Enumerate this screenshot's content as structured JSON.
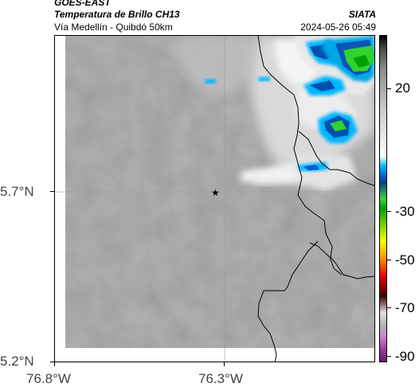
{
  "header": {
    "satellite": "GOES-EAST",
    "product": "Temperatura de Brillo CH13",
    "org": "SIATA",
    "region": "Vía Medellín - Quibdó 50km",
    "datetime": "2024-05-26 05:49"
  },
  "axes": {
    "lat_ticks": [
      "5.7°N",
      "5.2°N"
    ],
    "lon_ticks": [
      "76.8°W",
      "76.3°W"
    ]
  },
  "colorbar": {
    "labels": [
      "20",
      "-30",
      "-50",
      "-70",
      "-90"
    ]
  },
  "marker": {
    "symbol": "★"
  },
  "colors": {
    "background_gray": "#8c8c8c",
    "cloud_white": "#ffffff",
    "cold_blue": "#0050b0",
    "cold_cyan": "#00b6ff",
    "cold_green": "#2fd22f",
    "border_line": "#000000"
  }
}
